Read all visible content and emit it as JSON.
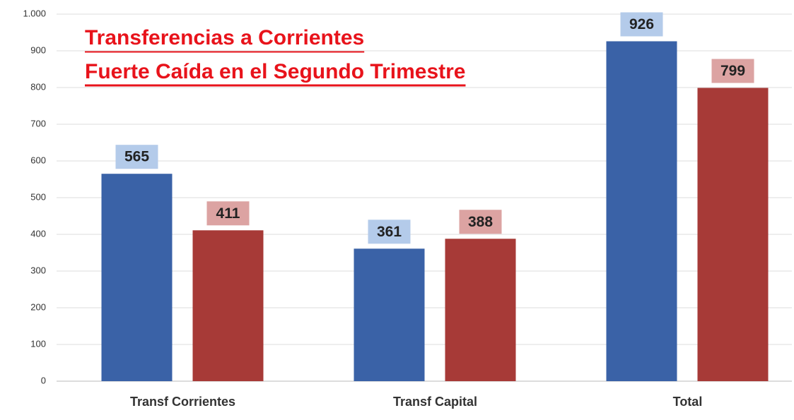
{
  "chart_data": {
    "type": "bar",
    "title": "Transferencias a Corrientes",
    "subtitle": "Fuerte Caída en el Segundo Trimestre",
    "categories": [
      "Transf Corrientes",
      "Transf Capital",
      "Total"
    ],
    "series": [
      {
        "color": "#3a62a7",
        "label_color": "#b4cbea",
        "values": [
          565,
          361,
          926
        ]
      },
      {
        "color": "#a73a37",
        "label_color": "#dca3a2",
        "values": [
          411,
          388,
          799
        ]
      }
    ],
    "ylim": [
      0,
      1000
    ],
    "yticks": [
      0,
      100,
      200,
      300,
      400,
      500,
      600,
      700,
      800,
      900,
      {
        "value": 1000,
        "label": "1.000"
      }
    ],
    "grid": true
  }
}
